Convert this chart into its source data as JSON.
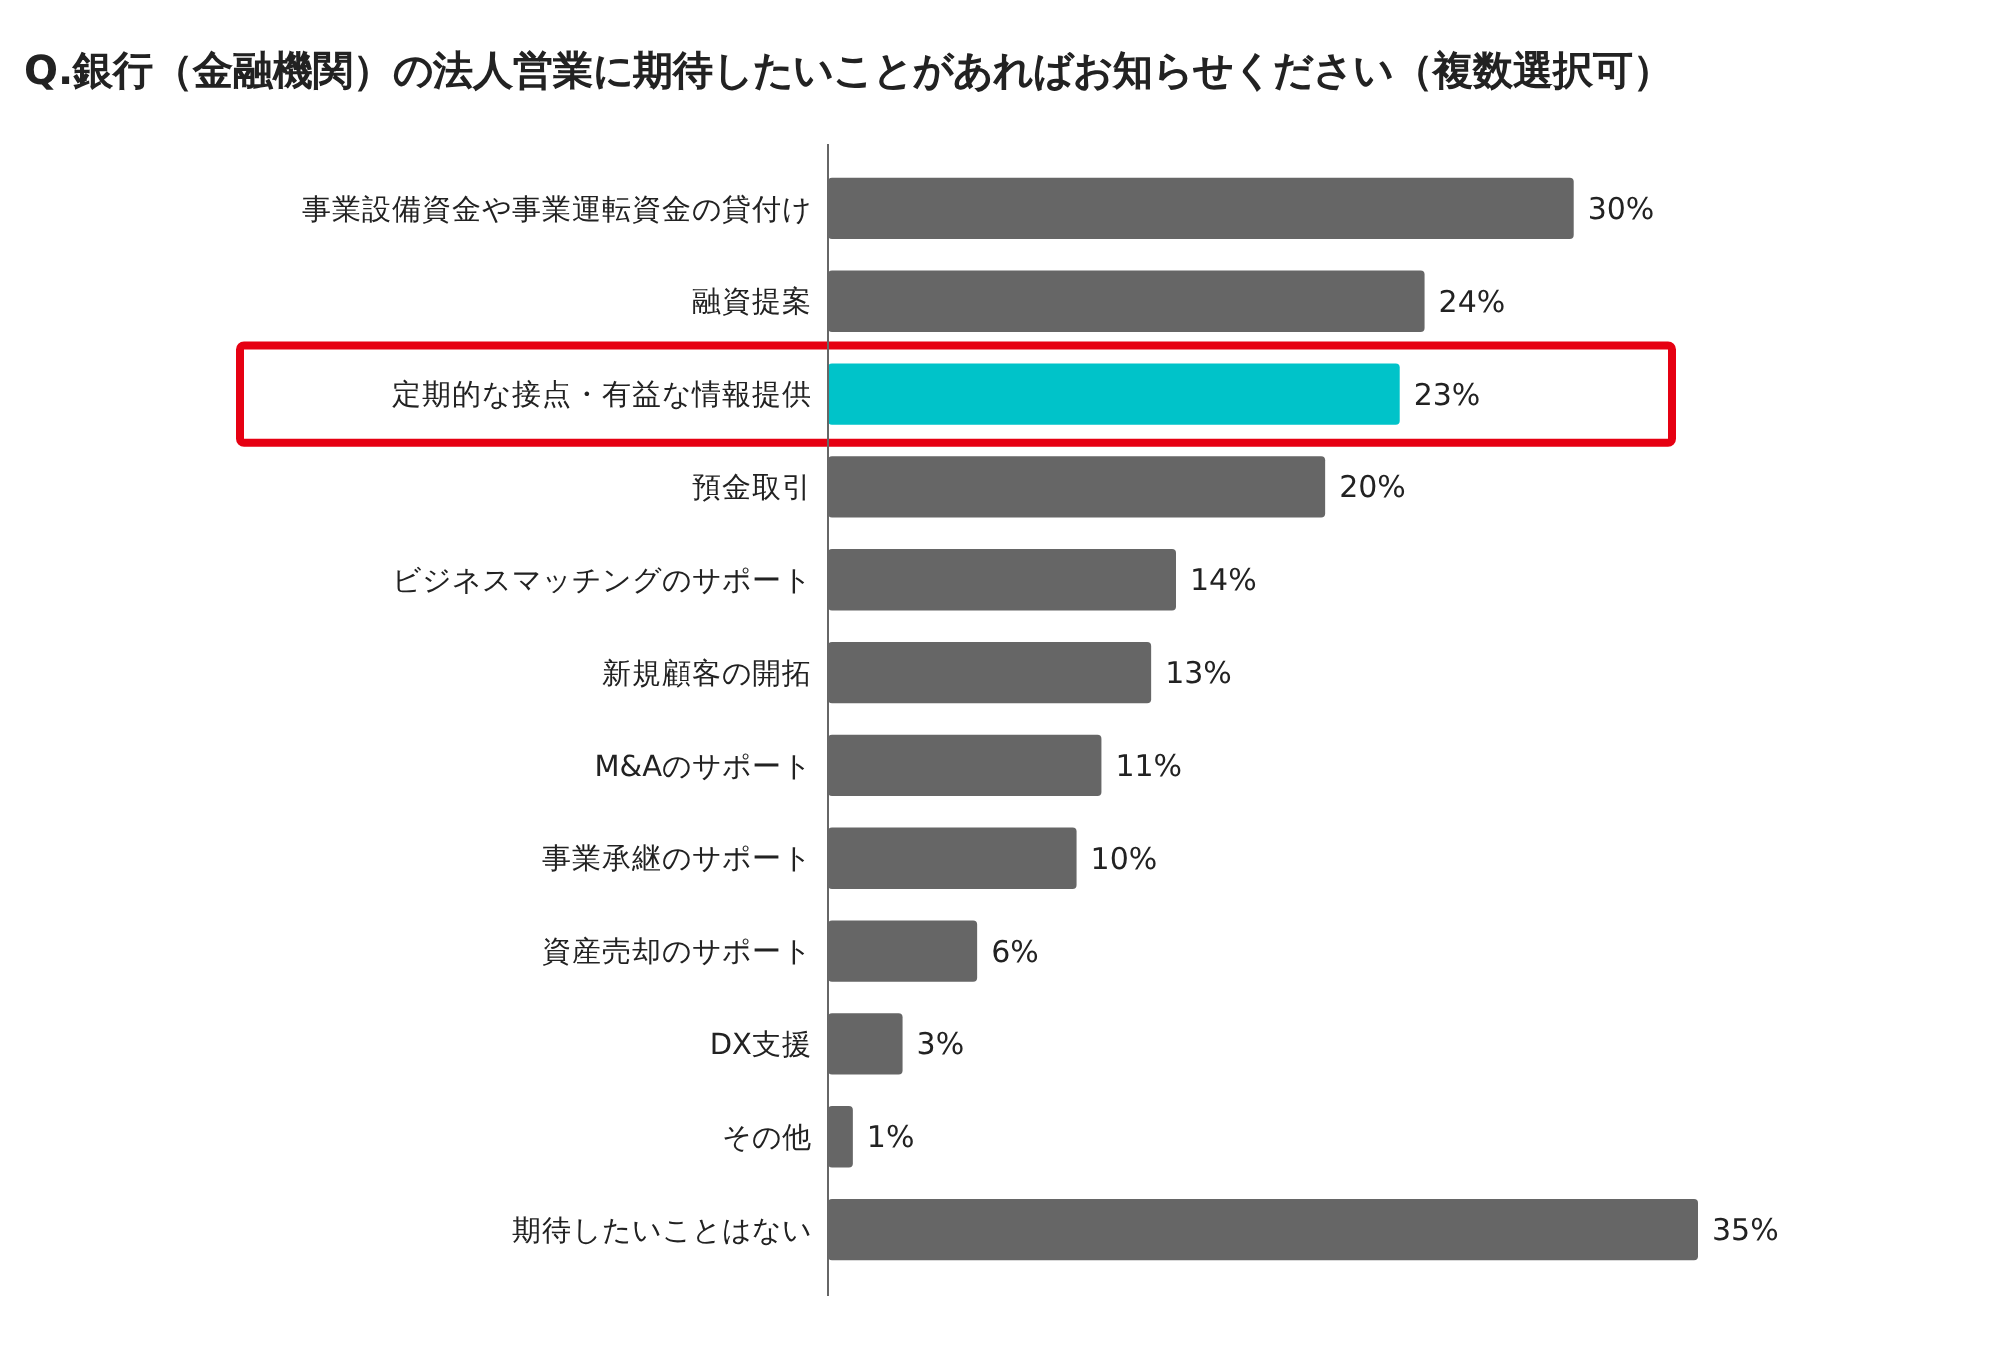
{
  "chart_data": {
    "type": "bar",
    "orientation": "horizontal",
    "title": "Q.銀行（金融機関）の法人営業に期待したいことがあればお知らせください（複数選択可）",
    "categories": [
      "事業設備資金や事業運転資金の貸付け",
      "融資提案",
      "定期的な接点・有益な情報提供",
      "預金取引",
      "ビジネスマッチングのサポート",
      "新規顧客の開拓",
      "M&Aのサポート",
      "事業承継のサポート",
      "資産売却のサポート",
      "DX支援",
      "その他",
      "期待したいことはない"
    ],
    "values": [
      30,
      24,
      23,
      20,
      14,
      13,
      11,
      10,
      6,
      3,
      1,
      35
    ],
    "colors": [
      "#666666",
      "#666666",
      "#00c3c9",
      "#666666",
      "#666666",
      "#666666",
      "#666666",
      "#666666",
      "#666666",
      "#666666",
      "#666666",
      "#666666"
    ],
    "value_labels": [
      "30%",
      "24%",
      "23%",
      "20%",
      "14%",
      "13%",
      "11%",
      "10%",
      "6%",
      "3%",
      "1%",
      "35%"
    ]
  }
}
